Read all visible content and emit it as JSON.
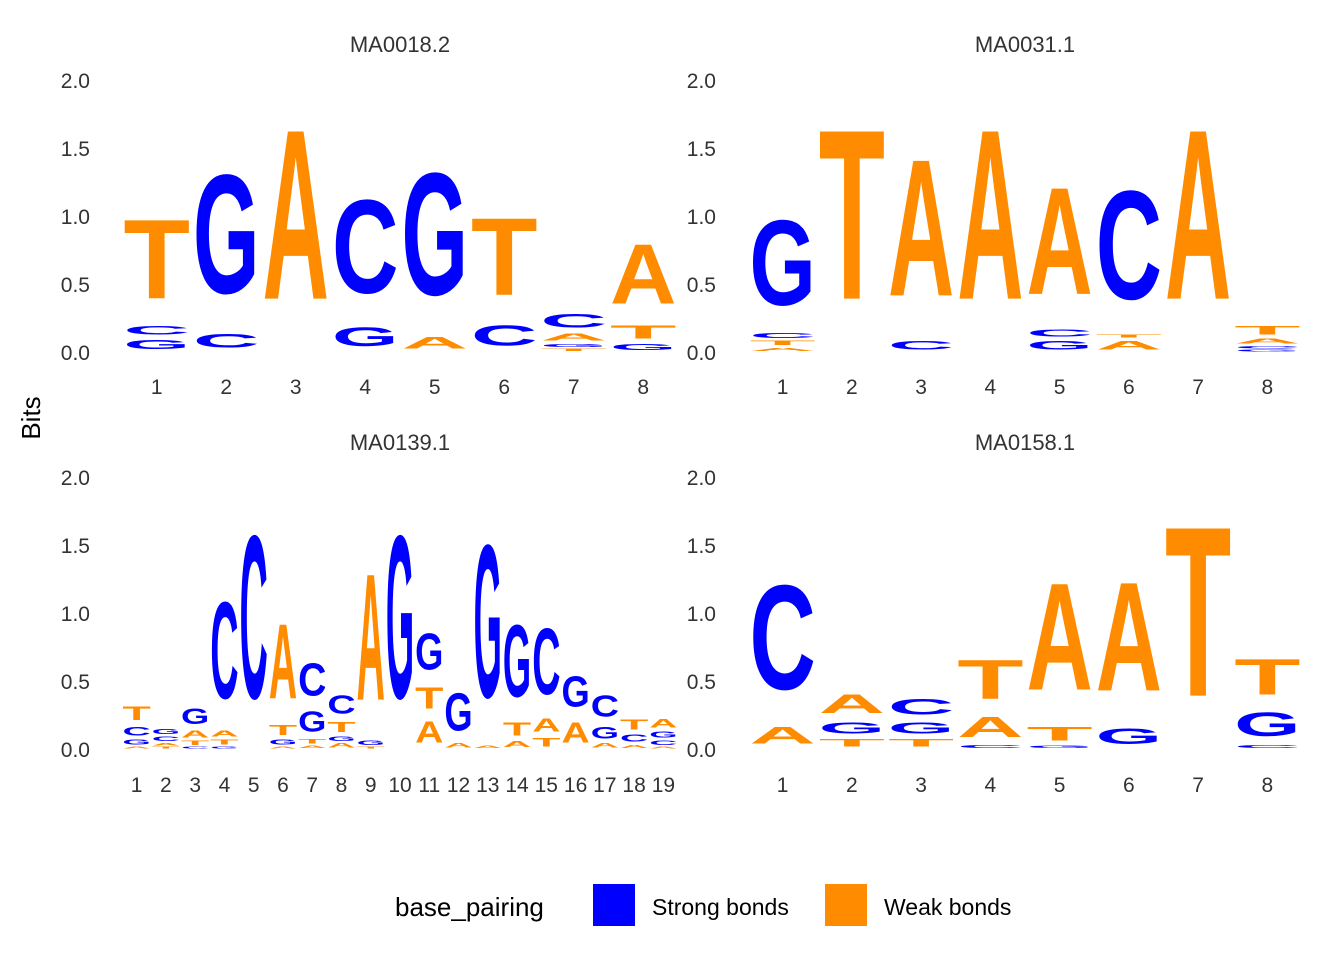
{
  "chart_data": {
    "type": "sequence-logo",
    "ylabel": "Bits",
    "ylim": [
      0,
      2
    ],
    "yticks": [
      "0.0",
      "0.5",
      "1.0",
      "1.5",
      "2.0"
    ],
    "colors": {
      "Strong bonds": "#0000FF",
      "Weak bonds": "#FF8C00"
    },
    "base_group": {
      "A": "Weak bonds",
      "T": "Weak bonds",
      "C": "Strong bonds",
      "G": "Strong bonds"
    },
    "legend": {
      "title": "base_pairing",
      "position": "bottom",
      "entries": [
        {
          "label": "Strong bonds",
          "color": "#0000FF"
        },
        {
          "label": "Weak bonds",
          "color": "#FF8C00"
        }
      ]
    },
    "panels": [
      {
        "title": "MA0018.2",
        "positions": [
          "1",
          "2",
          "3",
          "4",
          "5",
          "6",
          "7",
          "8"
        ],
        "stacks": [
          [
            [
              "G",
              0.11
            ],
            [
              "C",
              0.1
            ],
            [
              "T",
              0.93
            ]
          ],
          [
            [
              "C",
              0.16
            ],
            [
              "G",
              1.4
            ]
          ],
          [
            [
              "A",
              2.0
            ]
          ],
          [
            [
              "G",
              0.22
            ],
            [
              "C",
              1.1
            ]
          ],
          [
            [
              "A",
              0.14
            ],
            [
              "G",
              1.44
            ]
          ],
          [
            [
              "C",
              0.24
            ],
            [
              "T",
              0.91
            ]
          ],
          [
            [
              "T",
              0.03
            ],
            [
              "G",
              0.04
            ],
            [
              "A",
              0.08
            ],
            [
              "C",
              0.16
            ]
          ],
          [
            [
              "G",
              0.07
            ],
            [
              "T",
              0.15
            ],
            [
              "A",
              0.7
            ]
          ]
        ]
      },
      {
        "title": "MA0031.1",
        "positions": [
          "1",
          "2",
          "3",
          "4",
          "5",
          "6",
          "7",
          "8"
        ],
        "stacks": [
          [
            [
              "A",
              0.04
            ],
            [
              "T",
              0.05
            ],
            [
              "C",
              0.06
            ],
            [
              "G",
              1.0
            ]
          ],
          [
            [
              "T",
              2.0
            ]
          ],
          [
            [
              "C",
              0.1
            ],
            [
              "A",
              1.61
            ]
          ],
          [
            [
              "A",
              2.0
            ]
          ],
          [
            [
              "G",
              0.1
            ],
            [
              "C",
              0.08
            ],
            [
              "A",
              1.26
            ]
          ],
          [
            [
              "A",
              0.1
            ],
            [
              "T",
              0.04
            ],
            [
              "C",
              1.28
            ]
          ],
          [
            [
              "A",
              2.0
            ]
          ],
          [
            [
              "G",
              0.02
            ],
            [
              "C",
              0.03
            ],
            [
              "A",
              0.06
            ],
            [
              "T",
              0.1
            ]
          ]
        ]
      },
      {
        "title": "MA0139.1",
        "positions": [
          "1",
          "2",
          "3",
          "4",
          "5",
          "6",
          "7",
          "8",
          "9",
          "10",
          "11",
          "12",
          "13",
          "14",
          "15",
          "16",
          "17",
          "18",
          "19"
        ],
        "stacks": [
          [
            [
              "A",
              0.02
            ],
            [
              "G",
              0.06
            ],
            [
              "C",
              0.1
            ],
            [
              "T",
              0.16
            ]
          ],
          [
            [
              "T",
              0.02
            ],
            [
              "A",
              0.03
            ],
            [
              "C",
              0.05
            ],
            [
              "G",
              0.06
            ]
          ],
          [
            [
              "C",
              0.02
            ],
            [
              "T",
              0.05
            ],
            [
              "A",
              0.08
            ],
            [
              "G",
              0.18
            ]
          ],
          [
            [
              "G",
              0.02
            ],
            [
              "T",
              0.06
            ],
            [
              "A",
              0.07
            ],
            [
              "C",
              1.14
            ]
          ],
          [
            [
              "C",
              1.92
            ]
          ],
          [
            [
              "A",
              0.02
            ],
            [
              "G",
              0.06
            ],
            [
              "T",
              0.12
            ],
            [
              "A",
              0.88
            ]
          ],
          [
            [
              "A",
              0.03
            ],
            [
              "T",
              0.05
            ],
            [
              "G",
              0.24
            ],
            [
              "C",
              0.38
            ]
          ],
          [
            [
              "A",
              0.05
            ],
            [
              "G",
              0.05
            ],
            [
              "T",
              0.12
            ],
            [
              "C",
              0.21
            ]
          ],
          [
            [
              "T",
              0.02
            ],
            [
              "G",
              0.05
            ],
            [
              "A",
              1.49
            ]
          ],
          [
            [
              "G",
              1.92
            ]
          ],
          [
            [
              "A",
              0.25
            ],
            [
              "T",
              0.25
            ],
            [
              "G",
              0.43
            ]
          ],
          [
            [
              "A",
              0.05
            ],
            [
              "G",
              0.44
            ]
          ],
          [
            [
              "A",
              0.03
            ],
            [
              "G",
              1.8
            ]
          ],
          [
            [
              "A",
              0.07
            ],
            [
              "T",
              0.15
            ],
            [
              "G",
              0.85
            ]
          ],
          [
            [
              "T",
              0.1
            ],
            [
              "A",
              0.15
            ],
            [
              "C",
              0.78
            ]
          ],
          [
            [
              "A",
              0.24
            ],
            [
              "G",
              0.36
            ]
          ],
          [
            [
              "A",
              0.05
            ],
            [
              "G",
              0.14
            ],
            [
              "C",
              0.25
            ]
          ],
          [
            [
              "A",
              0.04
            ],
            [
              "C",
              0.08
            ],
            [
              "T",
              0.12
            ]
          ],
          [
            [
              "A",
              0.02
            ],
            [
              "C",
              0.05
            ],
            [
              "G",
              0.07
            ],
            [
              "A",
              0.1
            ]
          ]
        ]
      },
      {
        "title": "MA0158.1",
        "positions": [
          "1",
          "2",
          "3",
          "4",
          "5",
          "6",
          "7",
          "8"
        ],
        "stacks": [
          [
            [
              "A",
              0.2
            ],
            [
              "C",
              1.23
            ]
          ],
          [
            [
              "T",
              0.09
            ],
            [
              "G",
              0.13
            ],
            [
              "A",
              0.22
            ]
          ],
          [
            [
              "T",
              0.09
            ],
            [
              "G",
              0.13
            ],
            [
              "C",
              0.18
            ]
          ],
          [
            [
              "C",
              0.04
            ],
            [
              "A",
              0.24
            ],
            [
              "T",
              0.46
            ]
          ],
          [
            [
              "G",
              0.03
            ],
            [
              "T",
              0.16
            ],
            [
              "A",
              1.26
            ]
          ],
          [
            [
              "G",
              0.18
            ],
            [
              "A",
              1.28
            ]
          ],
          [
            [
              "T",
              2.0
            ]
          ],
          [
            [
              "C",
              0.04
            ],
            [
              "G",
              0.28
            ],
            [
              "T",
              0.42
            ]
          ]
        ]
      }
    ]
  }
}
